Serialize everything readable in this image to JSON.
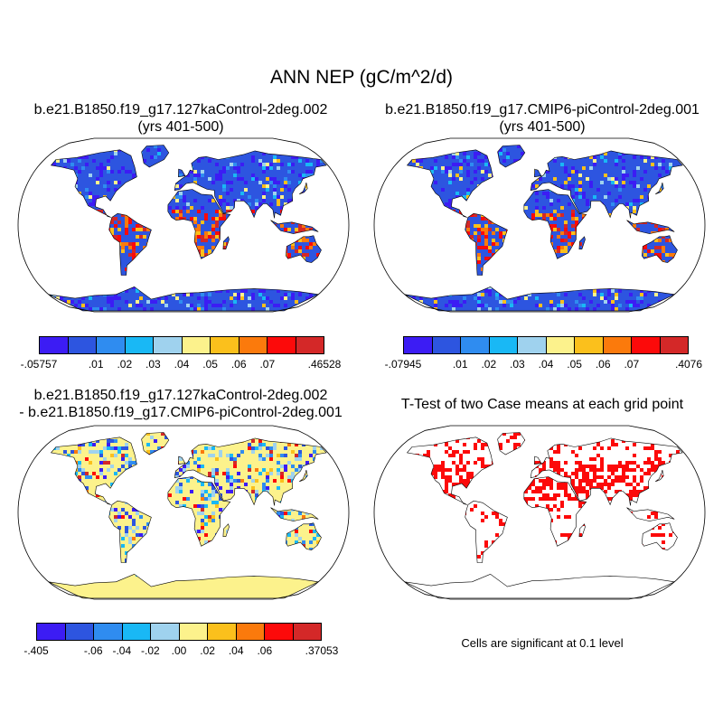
{
  "title": "ANN NEP (gC/m^2/d)",
  "panels": {
    "top_left": {
      "title_line1": "b.e21.B1850.f19_g17.127kaControl-2deg.002",
      "title_line2": "(yrs 401-500)"
    },
    "top_right": {
      "title_line1": "b.e21.B1850.f19_g17.CMIP6-piControl-2deg.001",
      "title_line2": "(yrs 401-500)"
    },
    "bottom_left": {
      "title_line1": "b.e21.B1850.f19_g17.127kaControl-2deg.002",
      "title_line2": "- b.e21.B1850.f19_g17.CMIP6-piControl-2deg.001"
    },
    "bottom_right": {
      "title_line1": "T-Test of two Case means at each grid point",
      "note": "Cells are significant at 0.1 level"
    }
  },
  "colorbars": {
    "top_left": {
      "colors": [
        "#3c1cf4",
        "#2d55e0",
        "#2f8cf0",
        "#19b8f5",
        "#9fd2ee",
        "#fcf28c",
        "#fbc01c",
        "#fb7a0c",
        "#fc0a0a",
        "#d42828"
      ],
      "labels": [
        "-.05757",
        "",
        ".01",
        ".02",
        ".03",
        ".04",
        ".05",
        ".06",
        ".07",
        "",
        ".46528"
      ]
    },
    "top_right": {
      "colors": [
        "#3c1cf4",
        "#2d55e0",
        "#2f8cf0",
        "#19b8f5",
        "#9fd2ee",
        "#fcf28c",
        "#fbc01c",
        "#fb7a0c",
        "#fc0a0a",
        "#d42828"
      ],
      "labels": [
        "-.07945",
        "",
        ".01",
        ".02",
        ".03",
        ".04",
        ".05",
        ".06",
        ".07",
        "",
        ".4076"
      ]
    },
    "bottom_left": {
      "colors": [
        "#3c1cf4",
        "#2d55e0",
        "#2f8cf0",
        "#19b8f5",
        "#9fd2ee",
        "#fcf28c",
        "#fbc01c",
        "#fb7a0c",
        "#fc0a0a",
        "#d42828"
      ],
      "labels": [
        "-.405",
        "",
        "-.06",
        "-.04",
        "-.02",
        ".00",
        ".02",
        ".04",
        ".06",
        "",
        ".37053"
      ]
    }
  },
  "map_style": {
    "ocean": "#ffffff",
    "outline": "#000000",
    "land_fill_top": "#2d55e0",
    "land_fill_diff": "#fcf28c",
    "significant": "#fc0a0a"
  }
}
